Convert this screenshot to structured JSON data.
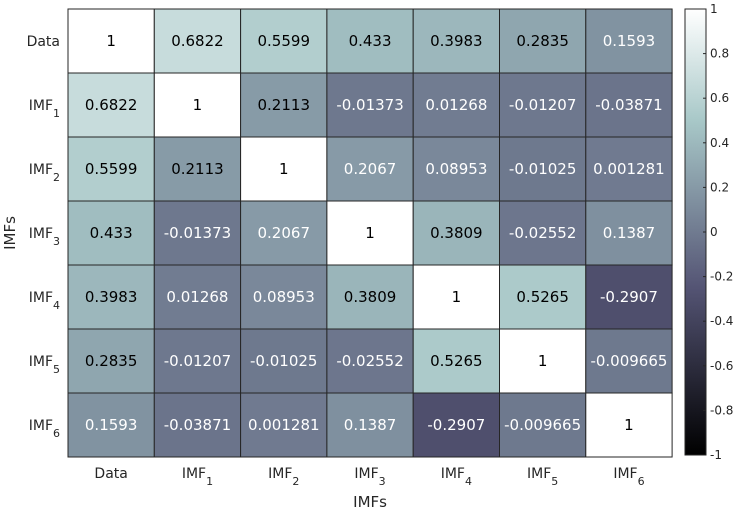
{
  "chart_data": {
    "type": "heatmap",
    "xlabel": "IMFs",
    "ylabel": "IMFs",
    "x_labels": [
      {
        "base": "Data",
        "sub": ""
      },
      {
        "base": "IMF",
        "sub": "1"
      },
      {
        "base": "IMF",
        "sub": "2"
      },
      {
        "base": "IMF",
        "sub": "3"
      },
      {
        "base": "IMF",
        "sub": "4"
      },
      {
        "base": "IMF",
        "sub": "5"
      },
      {
        "base": "IMF",
        "sub": "6"
      }
    ],
    "y_labels": [
      {
        "base": "Data",
        "sub": ""
      },
      {
        "base": "IMF",
        "sub": "1"
      },
      {
        "base": "IMF",
        "sub": "2"
      },
      {
        "base": "IMF",
        "sub": "3"
      },
      {
        "base": "IMF",
        "sub": "4"
      },
      {
        "base": "IMF",
        "sub": "5"
      },
      {
        "base": "IMF",
        "sub": "6"
      }
    ],
    "values": [
      [
        1,
        0.6822,
        0.5599,
        0.433,
        0.3983,
        0.2835,
        0.1593
      ],
      [
        0.6822,
        1,
        0.2113,
        -0.01373,
        0.01268,
        -0.01207,
        -0.03871
      ],
      [
        0.5599,
        0.2113,
        1,
        0.2067,
        0.08953,
        -0.01025,
        0.001281
      ],
      [
        0.433,
        -0.01373,
        0.2067,
        1,
        0.3809,
        -0.02552,
        0.1387
      ],
      [
        0.3983,
        0.01268,
        0.08953,
        0.3809,
        1,
        0.5265,
        -0.2907
      ],
      [
        0.2835,
        -0.01207,
        -0.01025,
        -0.02552,
        0.5265,
        1,
        -0.009665
      ],
      [
        0.1593,
        -0.03871,
        0.001281,
        0.1387,
        -0.2907,
        -0.009665,
        1
      ]
    ],
    "colorbar": {
      "range": [
        -1,
        1
      ],
      "ticks": [
        "1",
        "0.8",
        "0.6",
        "0.4",
        "0.2",
        "0",
        "-0.2",
        "-0.4",
        "-0.6",
        "-0.8",
        "-1"
      ]
    },
    "colormap": "bone",
    "text_color_dark": "#000000",
    "text_color_light": "#ffffff"
  }
}
